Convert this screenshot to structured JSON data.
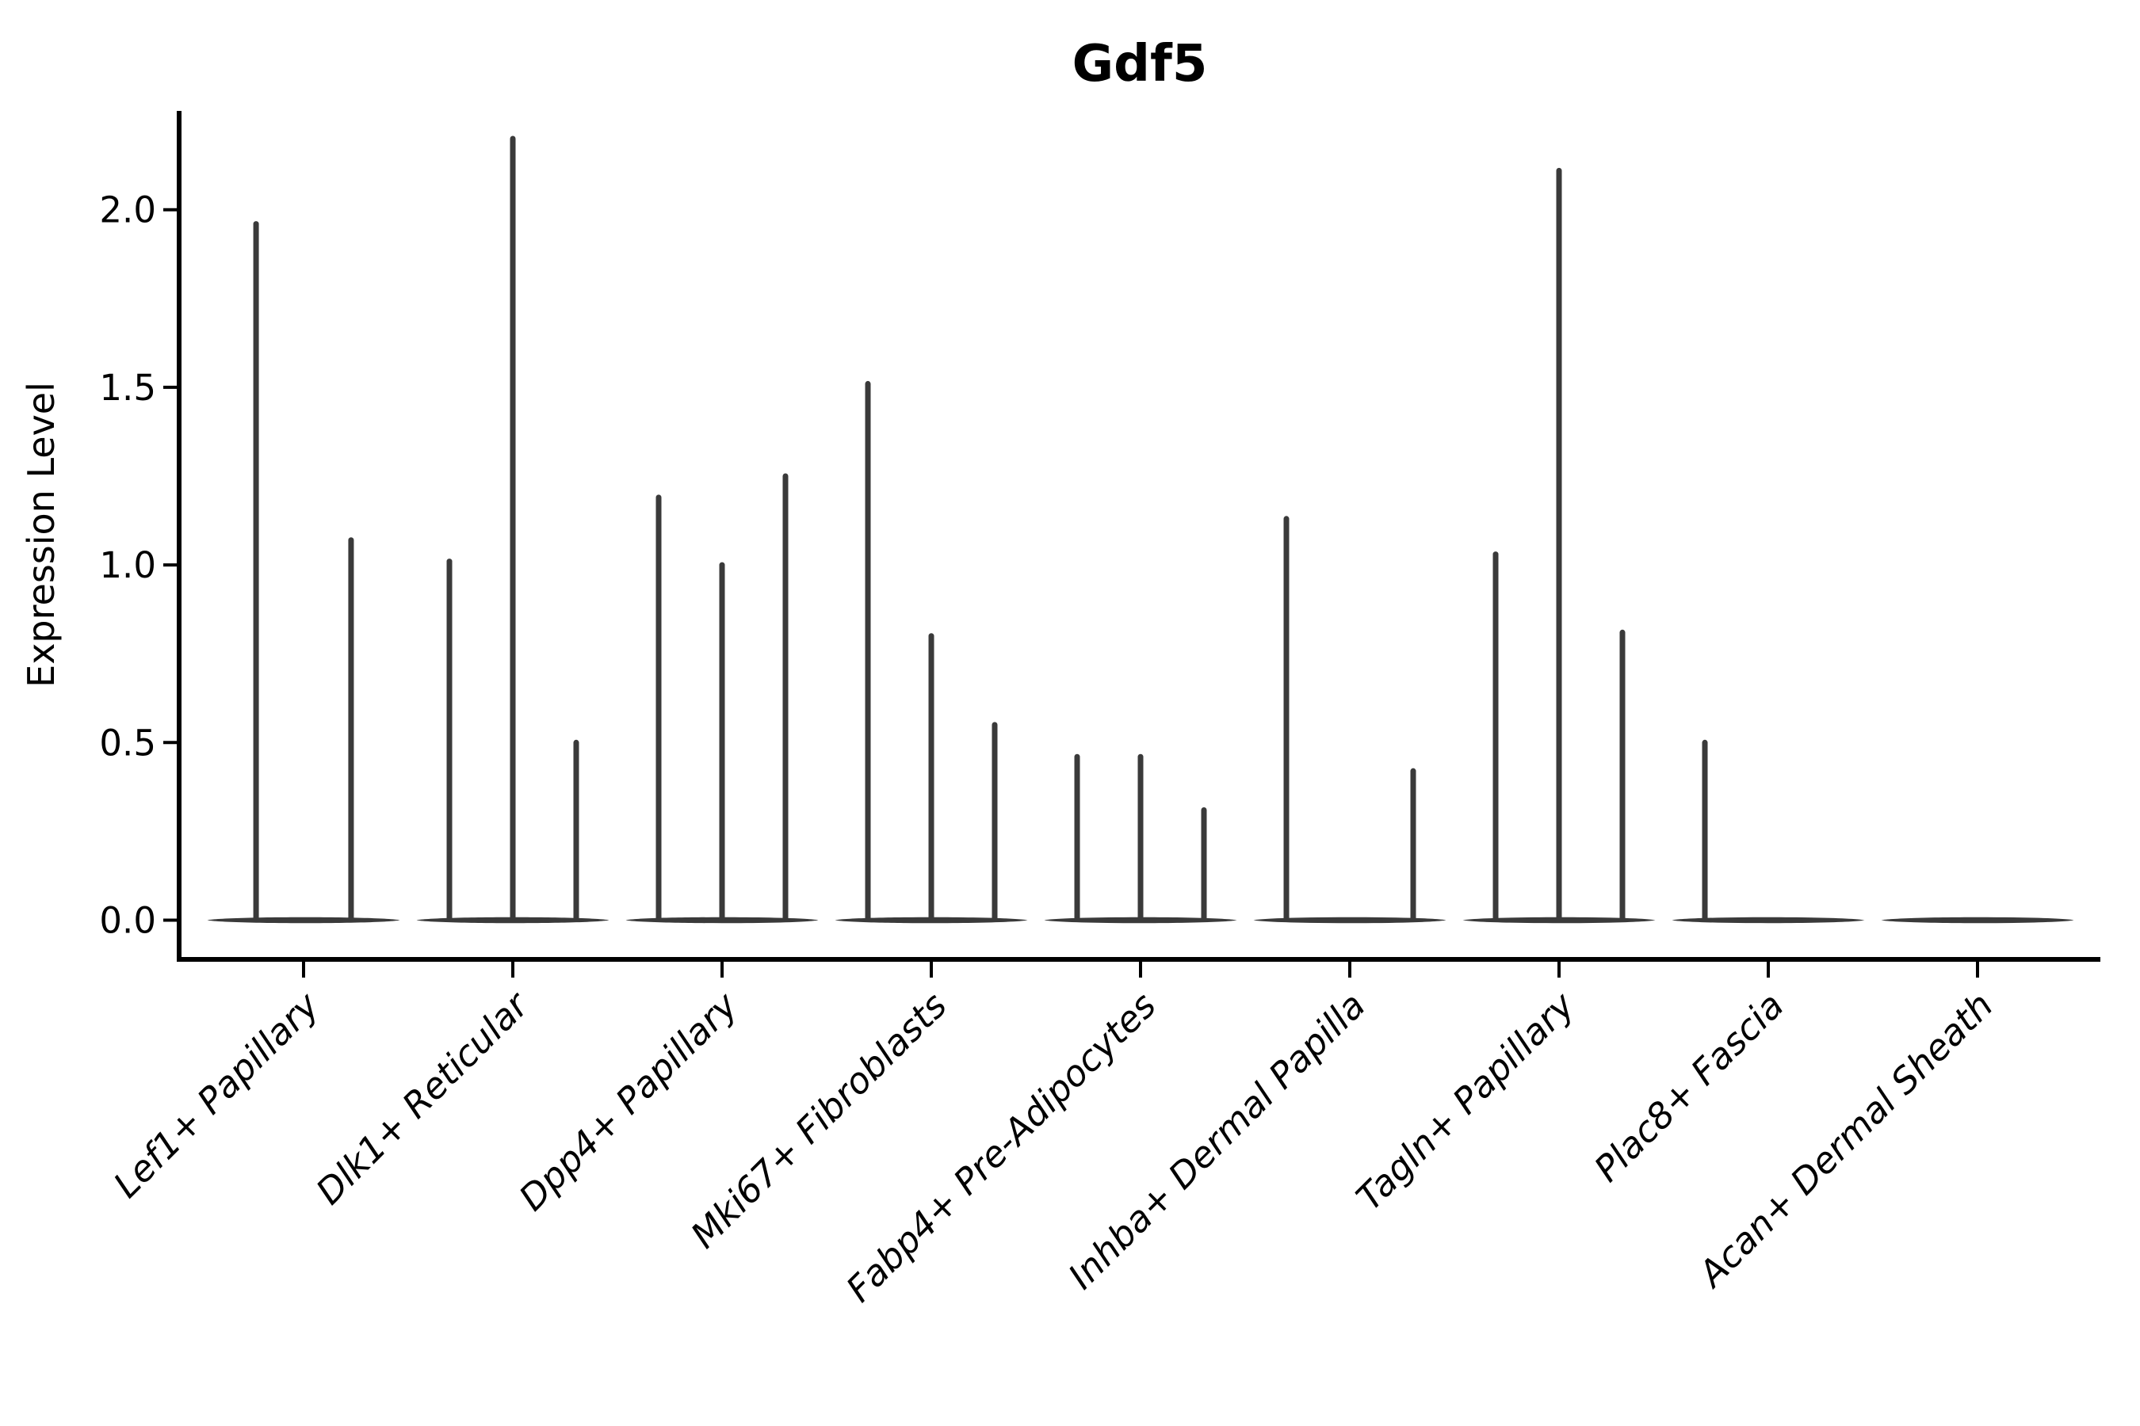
{
  "chart_data": {
    "type": "violin",
    "title": "Gdf5",
    "ylabel": "Expression Level",
    "xlabel": "",
    "grid": false,
    "legend": false,
    "ylim": [
      -0.11,
      2.28
    ],
    "yticks": [
      0.0,
      0.5,
      1.0,
      1.5,
      2.0
    ],
    "ytick_labels": [
      "0.0",
      "0.5",
      "1.0",
      "1.5",
      "2.0"
    ],
    "categories": [
      "Lef1+ Papillary",
      "Dlk1+ Reticular",
      "Dpp4+ Papillary",
      "Mki67+ Fibroblasts",
      "Fabp4+ Pre-Adipocytes",
      "Inhba+ Dermal Papilla",
      "Tagln+ Papillary",
      "Plac8+ Fascia",
      "Acan+ Dermal Sheath"
    ],
    "groups": [
      {
        "category": "Lef1+ Papillary",
        "spikes": [
          {
            "offset_frac": -0.227,
            "max_value": 1.96
          },
          {
            "offset_frac": 0.227,
            "max_value": 1.07
          }
        ]
      },
      {
        "category": "Dlk1+ Reticular",
        "spikes": [
          {
            "offset_frac": -0.303,
            "max_value": 1.01
          },
          {
            "offset_frac": 0,
            "max_value": 2.2
          },
          {
            "offset_frac": 0.303,
            "max_value": 0.5
          }
        ]
      },
      {
        "category": "Dpp4+ Papillary",
        "spikes": [
          {
            "offset_frac": -0.303,
            "max_value": 1.19
          },
          {
            "offset_frac": 0,
            "max_value": 1.0
          },
          {
            "offset_frac": 0.303,
            "max_value": 1.25
          }
        ]
      },
      {
        "category": "Mki67+ Fibroblasts",
        "spikes": [
          {
            "offset_frac": -0.303,
            "max_value": 1.51
          },
          {
            "offset_frac": 0,
            "max_value": 0.8
          },
          {
            "offset_frac": 0.303,
            "max_value": 0.55
          }
        ]
      },
      {
        "category": "Fabp4+ Pre-Adipocytes",
        "spikes": [
          {
            "offset_frac": -0.303,
            "max_value": 0.46
          },
          {
            "offset_frac": 0,
            "max_value": 0.46
          },
          {
            "offset_frac": 0.303,
            "max_value": 0.31
          }
        ]
      },
      {
        "category": "Inhba+ Dermal Papilla",
        "spikes": [
          {
            "offset_frac": -0.303,
            "max_value": 1.13
          },
          {
            "offset_frac": 0.303,
            "max_value": 0.42
          }
        ]
      },
      {
        "category": "Tagln+ Papillary",
        "spikes": [
          {
            "offset_frac": -0.303,
            "max_value": 1.03
          },
          {
            "offset_frac": 0,
            "max_value": 2.11
          },
          {
            "offset_frac": 0.303,
            "max_value": 0.81
          }
        ]
      },
      {
        "category": "Plac8+ Fascia",
        "spikes": [
          {
            "offset_frac": -0.303,
            "max_value": 0.5
          }
        ]
      },
      {
        "category": "Acan+ Dermal Sheath",
        "spikes": []
      }
    ],
    "baseline_half_width_frac": 0.46,
    "violin_color": "#3a3a3a",
    "axis_color": "#000000",
    "text_color": "#000000"
  }
}
